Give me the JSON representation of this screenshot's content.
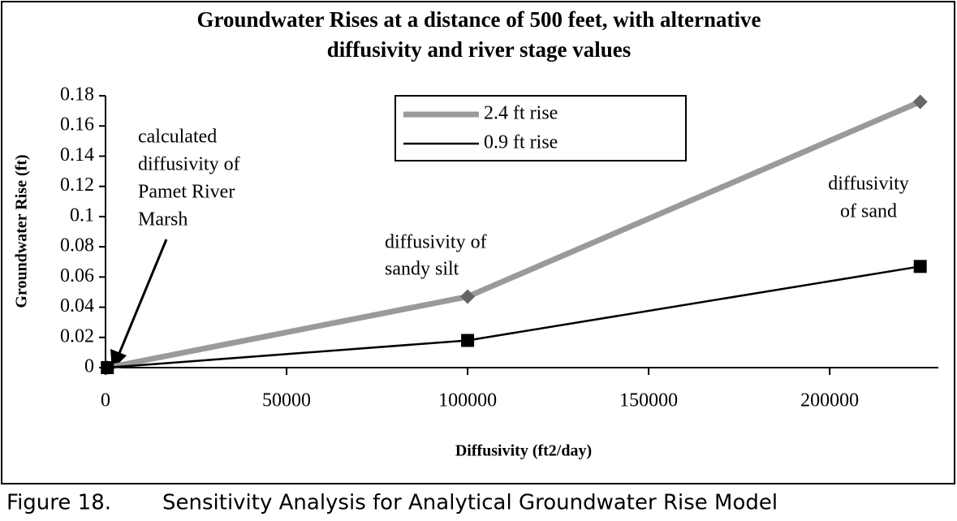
{
  "chart_data": {
    "type": "line",
    "title": [
      "Groundwater Rises at a distance of 500 feet, with alternative",
      "diffusivity and river stage values"
    ],
    "x_label": "Diffusivity (ft2/day)",
    "y_label": "Groundwater Rise (ft)",
    "x": [
      500,
      100000,
      225000
    ],
    "series": [
      {
        "name": "2.4 ft rise",
        "color": "#9a9a9a",
        "marker": "diamond",
        "values": [
          0,
          0.047,
          0.176
        ]
      },
      {
        "name": "0.9 ft rise",
        "color": "#000000",
        "marker": "square",
        "values": [
          0,
          0.018,
          0.067
        ]
      }
    ],
    "xlim": [
      0,
      230000
    ],
    "xticks": [
      0,
      50000,
      100000,
      150000,
      200000
    ],
    "ylim": [
      0,
      0.18
    ],
    "yticks": [
      0,
      0.02,
      0.04,
      0.06,
      0.08,
      0.1,
      0.12,
      0.14,
      0.16,
      0.18
    ],
    "annotations": [
      {
        "text": [
          "calculated",
          "diffusivity of",
          "Pamet River",
          "Marsh"
        ]
      },
      {
        "text": [
          "diffusivity of",
          "sandy silt"
        ]
      },
      {
        "text": [
          "diffusivity",
          "of sand"
        ]
      }
    ]
  },
  "caption": {
    "label": "Figure 18.",
    "text": "Sensitivity Analysis for Analytical Groundwater Rise Model"
  }
}
